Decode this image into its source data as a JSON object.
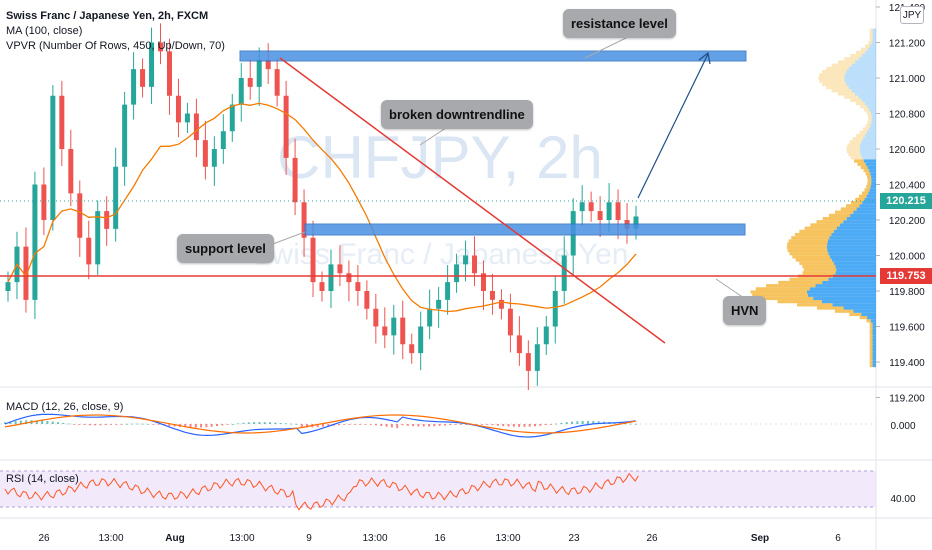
{
  "legend": {
    "title": "Swiss Franc / Japanese Yen, 2h, FXCM",
    "ma": "MA (100, close)",
    "vpvr": "VPVR (Number Of Rows, 450, Up/Down, 70)"
  },
  "watermark": {
    "symbol": "CHFJPY, 2h",
    "name": "Swiss Franc / Japanese Yen"
  },
  "currency_badge": "JPY",
  "price_axis": {
    "ticks": [
      "121.400",
      "121.200",
      "121.000",
      "120.800",
      "120.600",
      "120.400",
      "120.200",
      "120.000",
      "119.800",
      "119.600",
      "119.400",
      "119.200"
    ],
    "last_price": "120.215",
    "hvn_price": "119.753"
  },
  "time_axis": {
    "labels": [
      "26",
      "13:00",
      "Aug",
      "13:00",
      "9",
      "13:00",
      "16",
      "13:00",
      "23",
      "26",
      "Sep",
      "6"
    ]
  },
  "annotations": {
    "resistance": "resistance level",
    "downtrend": "broken downtrendline",
    "support": "support level",
    "hvn": "HVN"
  },
  "macd": {
    "label": "MACD (12, 26, close, 9)",
    "axis_value": "0.000"
  },
  "rsi": {
    "label": "RSI (14, close)",
    "axis_value": "40.00"
  },
  "colors": {
    "up": "#26a69a",
    "down": "#ef5350",
    "ma": "#f57c00",
    "zone": "#4a90e2",
    "hvn_line": "#e53935",
    "last_price": "#26a69a",
    "arrow": "#1e4f8a",
    "vpvr_up": "#2196f3",
    "vpvr_down": "#f5b942"
  },
  "chart_data": {
    "type": "candlestick",
    "symbol": "CHFJPY",
    "interval": "2h",
    "y_range": [
      119.2,
      121.4
    ],
    "levels": {
      "hvn": 119.753,
      "last": 120.215,
      "resistance_zone": [
        121.08,
        121.14
      ],
      "support_zone": [
        120.02,
        120.08
      ]
    },
    "downtrend_line": {
      "from": 121.16,
      "to": 119.35
    },
    "closes": [
      119.85,
      120.05,
      119.75,
      120.4,
      120.2,
      120.9,
      120.6,
      120.35,
      120.1,
      119.95,
      120.25,
      120.15,
      120.5,
      120.85,
      121.05,
      120.95,
      121.2,
      121.15,
      120.9,
      120.75,
      120.8,
      120.65,
      120.5,
      120.6,
      120.7,
      120.85,
      121.0,
      120.95,
      121.1,
      121.05,
      120.9,
      120.55,
      120.3,
      120.1,
      119.85,
      119.8,
      119.95,
      119.9,
      119.85,
      119.8,
      119.7,
      119.6,
      119.55,
      119.65,
      119.5,
      119.45,
      119.6,
      119.7,
      119.75,
      119.85,
      119.95,
      120.0,
      119.9,
      119.8,
      119.75,
      119.7,
      119.55,
      119.45,
      119.35,
      119.5,
      119.6,
      119.8,
      120.0,
      120.25,
      120.3,
      120.25,
      120.2,
      120.3,
      120.2,
      120.15,
      120.22
    ]
  }
}
